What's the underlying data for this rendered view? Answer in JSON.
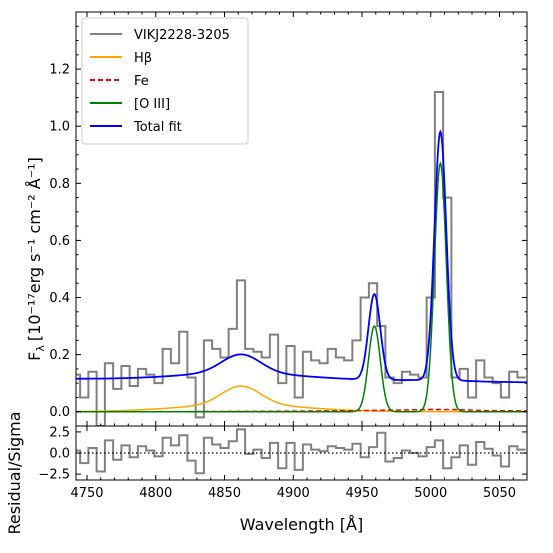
{
  "chart_data": [
    {
      "panel": "spectrum",
      "type": "line",
      "ylabel_base": "F",
      "ylabel_sub": "λ",
      "ylabel_units": "[10⁻¹⁷erg s⁻¹ cm⁻² Å⁻¹]",
      "xlim": [
        4742,
        5070
      ],
      "ylim": [
        -0.05,
        1.4
      ],
      "yticks": [
        "0.0",
        "0.2",
        "0.4",
        "0.6",
        "0.8",
        "1.0",
        "1.2"
      ],
      "ytick_values": [
        0.0,
        0.2,
        0.4,
        0.6,
        0.8,
        1.0,
        1.2
      ],
      "legend_position": "top-left",
      "series": [
        {
          "name": "VIKJ2228-3205",
          "color": "#808080",
          "style": "steps",
          "x": [
            4742,
            4748,
            4754,
            4760,
            4766,
            4772,
            4778,
            4784,
            4790,
            4796,
            4802,
            4808,
            4814,
            4820,
            4826,
            4832,
            4838,
            4844,
            4850,
            4856,
            4862,
            4868,
            4874,
            4880,
            4886,
            4892,
            4898,
            4904,
            4910,
            4916,
            4922,
            4928,
            4934,
            4940,
            4946,
            4952,
            4958,
            4964,
            4970,
            4976,
            4982,
            4988,
            4994,
            5000,
            5006,
            5012,
            5018,
            5024,
            5030,
            5036,
            5042,
            5048,
            5054,
            5060,
            5066
          ],
          "values": [
            0.13,
            0.05,
            0.14,
            -0.05,
            0.17,
            0.08,
            0.16,
            0.09,
            0.15,
            0.13,
            0.1,
            0.22,
            0.17,
            0.28,
            0.12,
            -0.02,
            0.25,
            0.22,
            0.19,
            0.29,
            0.46,
            0.22,
            0.21,
            0.19,
            0.27,
            0.1,
            0.23,
            0.05,
            0.21,
            0.18,
            0.17,
            0.22,
            0.19,
            0.18,
            0.25,
            0.4,
            0.45,
            0.3,
            0.12,
            0.1,
            0.14,
            0.13,
            0.12,
            0.4,
            1.12,
            0.75,
            0.12,
            0.15,
            0.05,
            0.18,
            0.12,
            0.1,
            0.05,
            0.14,
            0.12
          ]
        },
        {
          "name": "Hβ",
          "color": "#ffa500",
          "style": "line",
          "components": {
            "center": 4862,
            "amplitude": 0.065,
            "sigma": 14,
            "broad_amplitude": 0.025,
            "broad_sigma": 45
          }
        },
        {
          "name": "Fe",
          "color": "#ff0000",
          "style": "dashed",
          "x": [
            4742,
            4800,
            4900,
            4950,
            4980,
            5000,
            5020,
            5040,
            5070
          ],
          "values": [
            0.0,
            0.0,
            0.002,
            0.004,
            0.006,
            0.008,
            0.007,
            0.004,
            0.003
          ]
        },
        {
          "name": "[O III]",
          "color": "#008000",
          "style": "line",
          "components": {
            "center1": 4959,
            "amplitude1": 0.3,
            "sigma1": 4.3,
            "center2": 5007,
            "amplitude2": 0.87,
            "sigma2": 4.3
          }
        },
        {
          "name": "Total fit",
          "color": "#0000ff",
          "style": "line",
          "components": {
            "continuum_at_start": 0.115,
            "continuum_at_end": 0.1
          }
        }
      ]
    },
    {
      "panel": "residual",
      "type": "line",
      "ylabel": "Residual/Sigma",
      "xlabel": "Wavelength [Å]",
      "xlim": [
        4742,
        5070
      ],
      "ylim": [
        -3.2,
        3.2
      ],
      "yticks": [
        "−2.5",
        "0.0",
        "2.5"
      ],
      "ytick_values": [
        -2.5,
        0.0,
        2.5
      ],
      "xticks": [
        "4750",
        "4800",
        "4850",
        "4900",
        "4950",
        "5000",
        "5050"
      ],
      "xtick_values": [
        4750,
        4800,
        4850,
        4900,
        4950,
        5000,
        5050
      ],
      "series": [
        {
          "color": "#808080",
          "style": "steps",
          "x": [
            4742,
            4748,
            4754,
            4760,
            4766,
            4772,
            4778,
            4784,
            4790,
            4796,
            4802,
            4808,
            4814,
            4820,
            4826,
            4832,
            4838,
            4844,
            4850,
            4856,
            4862,
            4868,
            4874,
            4880,
            4886,
            4892,
            4898,
            4904,
            4910,
            4916,
            4922,
            4928,
            4934,
            4940,
            4946,
            4952,
            4958,
            4964,
            4970,
            4976,
            4982,
            4988,
            4994,
            5000,
            5006,
            5012,
            5018,
            5024,
            5030,
            5036,
            5042,
            5048,
            5054,
            5060,
            5066
          ],
          "values": [
            0.3,
            -1.2,
            0.6,
            -2.2,
            1.5,
            -0.8,
            0.9,
            -0.5,
            0.8,
            0.3,
            -0.4,
            1.8,
            0.9,
            2.1,
            -0.9,
            -2.4,
            1.8,
            1.0,
            0.6,
            1.4,
            2.8,
            -0.1,
            0.4,
            -0.6,
            1.2,
            -1.8,
            1.2,
            -2.0,
            1.0,
            0.4,
            0.2,
            0.8,
            0.6,
            0.4,
            1.1,
            -0.5,
            0.7,
            2.4,
            -1.0,
            -0.6,
            0.3,
            0.0,
            -0.4,
            0.7,
            1.5,
            -1.8,
            -0.5,
            0.9,
            -1.4,
            1.3,
            0.5,
            -0.3,
            -1.6,
            0.8,
            0.4
          ]
        }
      ],
      "zero_line": {
        "style": "dotted",
        "color": "#000000"
      }
    }
  ]
}
